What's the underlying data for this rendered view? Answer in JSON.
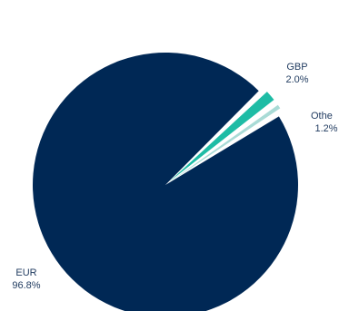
{
  "chart_data": {
    "type": "pie",
    "slices": [
      {
        "name": "EUR",
        "value": 96.8,
        "value_label": "96.8%",
        "color": "#002855"
      },
      {
        "name": "GBP",
        "value": 2.0,
        "value_label": "2.0%",
        "color": "#1ebca5"
      },
      {
        "name": "Othe",
        "value": 1.2,
        "value_label": "1.2%",
        "color": "#a9dbd6"
      }
    ],
    "exploded": true,
    "legend": "none"
  }
}
